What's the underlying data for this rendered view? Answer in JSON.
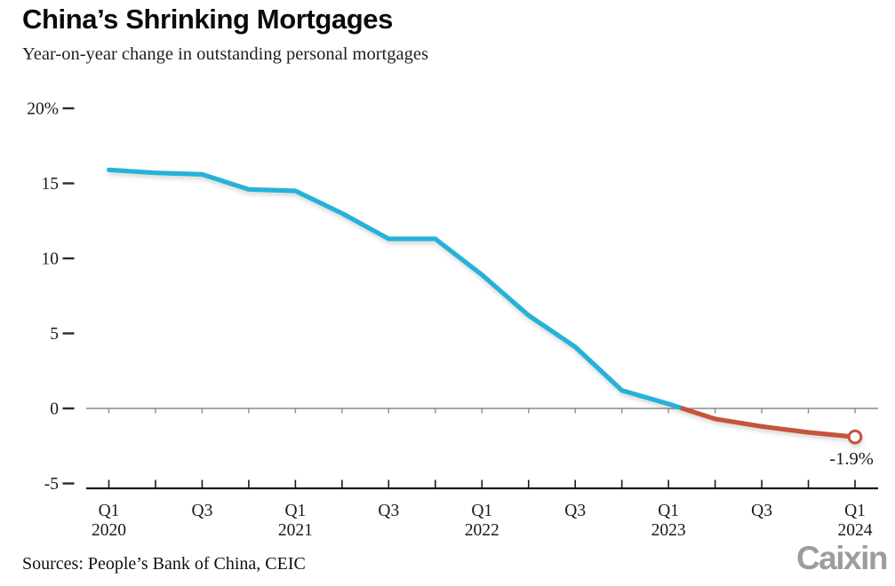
{
  "header": {
    "title": "China’s Shrinking Mortgages",
    "subtitle": "Year-on-year change in outstanding personal mortgages"
  },
  "footer": {
    "sources": "Sources: People’s Bank of China, CEIC",
    "brand": "Caixin"
  },
  "chart_data": {
    "type": "line",
    "title": "China’s Shrinking Mortgages",
    "subtitle": "Year-on-year change in outstanding personal mortgages",
    "series_name": "YoY change in outstanding personal mortgages (%)",
    "x": [
      "Q1 2020",
      "Q2 2020",
      "Q3 2020",
      "Q4 2020",
      "Q1 2021",
      "Q2 2021",
      "Q3 2021",
      "Q4 2021",
      "Q1 2022",
      "Q2 2022",
      "Q3 2022",
      "Q4 2022",
      "Q1 2023",
      "Q2 2023",
      "Q3 2023",
      "Q4 2023",
      "Q1 2024"
    ],
    "values": [
      15.9,
      15.7,
      15.6,
      14.6,
      14.5,
      13.0,
      11.3,
      11.3,
      8.9,
      6.2,
      4.1,
      1.2,
      0.3,
      -0.7,
      -1.2,
      -1.6,
      -1.9
    ],
    "end_label": "-1.9%",
    "ylim": [
      -5,
      20
    ],
    "y_ticks": [
      {
        "value": 20,
        "label": "20%"
      },
      {
        "value": 15,
        "label": "15"
      },
      {
        "value": 10,
        "label": "10"
      },
      {
        "value": 5,
        "label": "5"
      },
      {
        "value": 0,
        "label": "0"
      },
      {
        "value": -5,
        "label": "-5"
      }
    ],
    "x_tick_labels": [
      {
        "index": 0,
        "line1": "Q1",
        "line2": "2020"
      },
      {
        "index": 2,
        "line1": "Q3",
        "line2": ""
      },
      {
        "index": 4,
        "line1": "Q1",
        "line2": "2021"
      },
      {
        "index": 6,
        "line1": "Q3",
        "line2": ""
      },
      {
        "index": 8,
        "line1": "Q1",
        "line2": "2022"
      },
      {
        "index": 10,
        "line1": "Q3",
        "line2": ""
      },
      {
        "index": 12,
        "line1": "Q1",
        "line2": "2023"
      },
      {
        "index": 14,
        "line1": "Q3",
        "line2": ""
      },
      {
        "index": 16,
        "line1": "Q1",
        "line2": "2024"
      }
    ],
    "grid": "zero-line-only",
    "legend": "none",
    "color_split_at_zero": true,
    "colors": {
      "positive": "#26b2d8",
      "negative": "#c6523c",
      "axis": "#1a1a1a",
      "zero_line": "#8c8c8c",
      "tick_dash": "#2b2b2b",
      "text": "#1a1a1a",
      "marker_fill": "#ffffff"
    }
  }
}
